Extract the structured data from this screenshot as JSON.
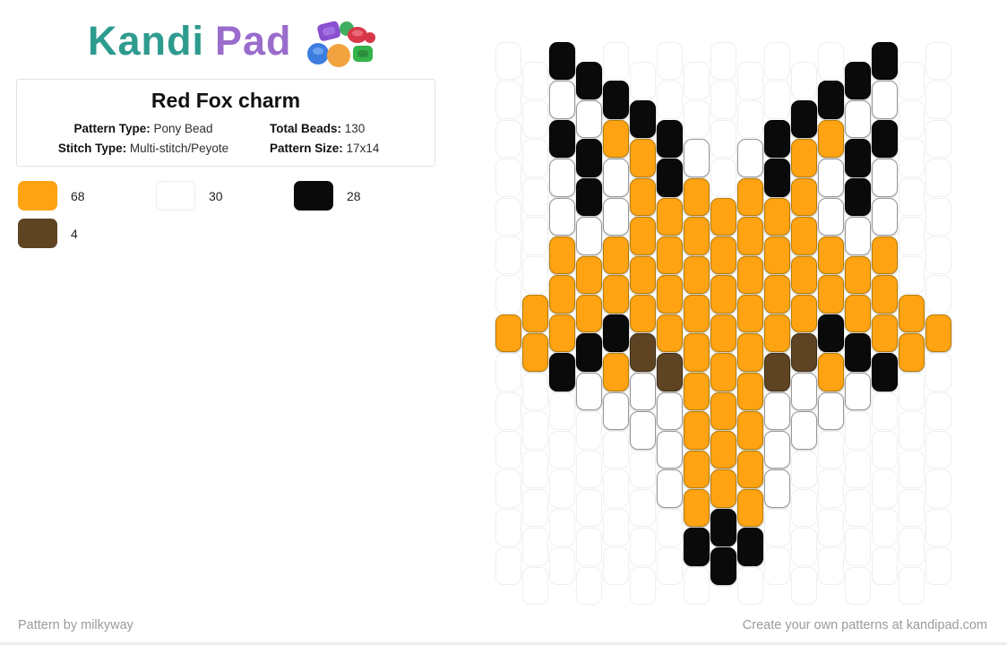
{
  "logo": {
    "primary": "Kandi",
    "secondary": "Pad"
  },
  "card": {
    "title": "Red Fox charm",
    "meta": [
      {
        "label": "Pattern Type:",
        "value": "Pony Bead"
      },
      {
        "label": "Total Beads:",
        "value": "130"
      },
      {
        "label": "Stitch Type:",
        "value": "Multi-stitch/Peyote"
      },
      {
        "label": "Pattern Size:",
        "value": "17x14"
      }
    ]
  },
  "legend": {
    "colors": {
      "orange": "#FFA312",
      "white": "#FFFFFF",
      "black": "#0A0A0A",
      "brown": "#5E4423"
    },
    "items": [
      {
        "name": "orange",
        "count": "68"
      },
      {
        "name": "white",
        "count": "30"
      },
      {
        "name": "black",
        "count": "28"
      },
      {
        "name": "brown",
        "count": "4"
      }
    ]
  },
  "chart_data": {
    "type": "heatmap",
    "title": "Red Fox charm bead pattern",
    "grid_cols": 17,
    "grid_rows": 14,
    "stitch": "peyote (odd columns offset half a bead down)",
    "cell_key": {
      ".": "empty",
      "O": "orange",
      "W": "white",
      "K": "black",
      "B": "brown"
    },
    "columns": [
      ".......O......",
      "......OO......",
      "KWKWWOOOK.....",
      "KWKKWOOKW.....",
      ".KOWWOOKOW....",
      ".KOOOOOBWW....",
      "..KKOOOOBWWW..",
      "..WOOOOOOOOOK.",
      "....OOOOOOOOKK",
      "..WOOOOOOOOOK.",
      "..KKOOOOBWWW..",
      ".KOOOOOBWW....",
      ".KOWWOOKOW....",
      "KWKKWOOKW.....",
      "KWKWWOOOK.....",
      "......OO......",
      ".......O......"
    ]
  },
  "footer": {
    "left": "Pattern by milkyway",
    "right": "Create your own patterns at kandipad.com"
  }
}
